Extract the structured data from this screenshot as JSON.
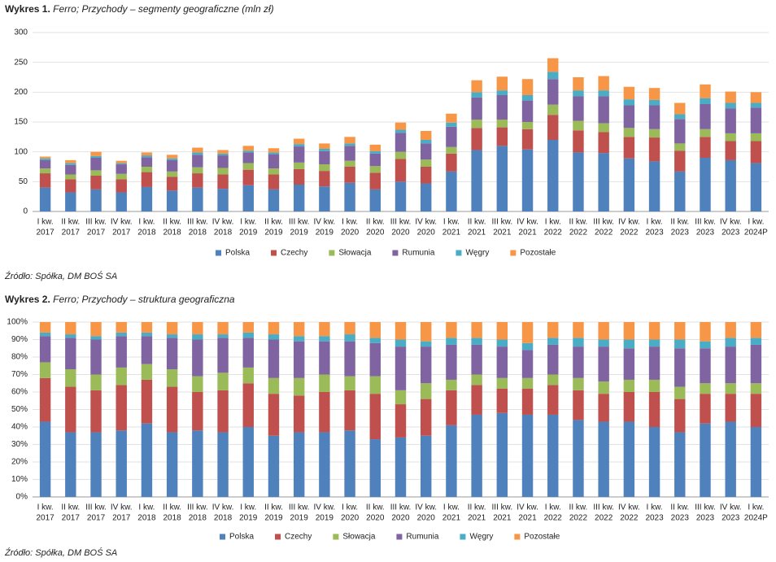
{
  "chart_data": [
    {
      "type": "stacked-bar",
      "label": "Wykres 1.",
      "title": "Ferro; Przychody – segmenty geograficzne (mln zł)",
      "categories": [
        [
          "I kw.",
          "2017"
        ],
        [
          "II kw.",
          "2017"
        ],
        [
          "III kw.",
          "2017"
        ],
        [
          "IV kw.",
          "2017"
        ],
        [
          "I kw.",
          "2018"
        ],
        [
          "II kw.",
          "2018"
        ],
        [
          "III kw.",
          "2018"
        ],
        [
          "IV kw.",
          "2018"
        ],
        [
          "I kw.",
          "2019"
        ],
        [
          "II kw.",
          "2019"
        ],
        [
          "III kw.",
          "2019"
        ],
        [
          "IV kw.",
          "2019"
        ],
        [
          "I kw.",
          "2020"
        ],
        [
          "II kw.",
          "2020"
        ],
        [
          "III kw.",
          "2020"
        ],
        [
          "IV kw.",
          "2020"
        ],
        [
          "I kw.",
          "2021"
        ],
        [
          "II kw.",
          "2021"
        ],
        [
          "III kw.",
          "2021"
        ],
        [
          "IV kw.",
          "2021"
        ],
        [
          "I kw.",
          "2022"
        ],
        [
          "II kw.",
          "2022"
        ],
        [
          "III kw.",
          "2022"
        ],
        [
          "IV kw.",
          "2022"
        ],
        [
          "I kw.",
          "2023"
        ],
        [
          "II kw.",
          "2023"
        ],
        [
          "III kw.",
          "2023"
        ],
        [
          "IV kw.",
          "2023"
        ],
        [
          "I kw.",
          "2024P"
        ]
      ],
      "series": [
        {
          "name": "Polska",
          "color": "#4f81bd",
          "values": [
            40,
            32,
            37,
            32,
            41,
            35,
            40,
            38,
            44,
            37,
            45,
            42,
            48,
            37,
            50,
            47,
            67,
            103,
            110,
            104,
            120,
            99,
            98,
            89,
            84,
            67,
            90,
            86,
            81
          ]
        },
        {
          "name": "Czechy",
          "color": "#c0504d",
          "values": [
            24,
            22,
            23,
            22,
            25,
            23,
            24,
            24,
            26,
            25,
            26,
            26,
            27,
            28,
            38,
            28,
            30,
            37,
            31,
            34,
            42,
            37,
            35,
            36,
            40,
            35,
            35,
            32,
            37
          ]
        },
        {
          "name": "Słowacja",
          "color": "#9bbb59",
          "values": [
            8,
            8,
            9,
            9,
            9,
            9,
            10,
            11,
            11,
            10,
            11,
            11,
            10,
            11,
            12,
            12,
            11,
            14,
            13,
            12,
            17,
            16,
            15,
            15,
            14,
            12,
            13,
            13,
            13
          ]
        },
        {
          "name": "Rumunia",
          "color": "#8064a2",
          "values": [
            14,
            16,
            21,
            16,
            16,
            19,
            21,
            21,
            18,
            24,
            27,
            22,
            25,
            21,
            32,
            27,
            34,
            37,
            41,
            36,
            43,
            41,
            45,
            38,
            40,
            41,
            42,
            42,
            43
          ]
        },
        {
          "name": "Węgry",
          "color": "#4bacc6",
          "values": [
            3,
            3,
            3,
            2,
            3,
            3,
            4,
            3,
            3,
            3,
            4,
            4,
            4,
            4,
            5,
            6,
            7,
            9,
            8,
            9,
            12,
            10,
            10,
            10,
            9,
            8,
            10,
            9,
            8
          ]
        },
        {
          "name": "Pozostałe",
          "color": "#f79646",
          "values": [
            3,
            5,
            7,
            4,
            5,
            6,
            8,
            6,
            8,
            7,
            9,
            9,
            11,
            11,
            12,
            15,
            15,
            20,
            23,
            27,
            23,
            22,
            24,
            21,
            20,
            19,
            23,
            19,
            18
          ]
        }
      ],
      "ylim": [
        0,
        300
      ],
      "yticks": [
        0,
        50,
        100,
        150,
        200,
        250,
        300
      ],
      "grid": true,
      "legend": "bottom",
      "source": "Źródło: Spółka, DM BOŚ SA"
    },
    {
      "type": "stacked-bar",
      "label": "Wykres 2.",
      "title": "Ferro; Przychody – struktura geograficzna",
      "categories": [
        [
          "I kw.",
          "2017"
        ],
        [
          "II kw.",
          "2017"
        ],
        [
          "III kw.",
          "2017"
        ],
        [
          "IV kw.",
          "2017"
        ],
        [
          "I kw.",
          "2018"
        ],
        [
          "II kw.",
          "2018"
        ],
        [
          "III kw.",
          "2018"
        ],
        [
          "IV kw.",
          "2018"
        ],
        [
          "I kw.",
          "2019"
        ],
        [
          "II kw.",
          "2019"
        ],
        [
          "III kw.",
          "2019"
        ],
        [
          "IV kw.",
          "2019"
        ],
        [
          "I kw.",
          "2020"
        ],
        [
          "II kw.",
          "2020"
        ],
        [
          "III kw.",
          "2020"
        ],
        [
          "IV kw.",
          "2020"
        ],
        [
          "I kw.",
          "2021"
        ],
        [
          "II kw.",
          "2021"
        ],
        [
          "III kw.",
          "2021"
        ],
        [
          "IV kw.",
          "2021"
        ],
        [
          "I kw.",
          "2022"
        ],
        [
          "II kw.",
          "2022"
        ],
        [
          "III kw.",
          "2022"
        ],
        [
          "IV kw.",
          "2022"
        ],
        [
          "I kw.",
          "2023"
        ],
        [
          "II kw.",
          "2023"
        ],
        [
          "III kw.",
          "2023"
        ],
        [
          "IV kw.",
          "2023"
        ],
        [
          "I kw.",
          "2024P"
        ]
      ],
      "series": [
        {
          "name": "Polska",
          "color": "#4f81bd",
          "values": [
            43,
            37,
            37,
            38,
            42,
            37,
            38,
            37,
            40,
            35,
            37,
            37,
            38,
            33,
            34,
            35,
            41,
            47,
            48,
            47,
            47,
            44,
            43,
            43,
            40,
            37,
            42,
            43,
            40
          ]
        },
        {
          "name": "Czechy",
          "color": "#c0504d",
          "values": [
            25,
            26,
            24,
            26,
            25,
            26,
            22,
            24,
            25,
            24,
            21,
            23,
            23,
            26,
            19,
            21,
            20,
            17,
            14,
            15,
            17,
            17,
            16,
            17,
            20,
            19,
            17,
            16,
            19
          ]
        },
        {
          "name": "Słowacja",
          "color": "#9bbb59",
          "values": [
            9,
            10,
            9,
            10,
            9,
            10,
            9,
            10,
            9,
            9,
            10,
            10,
            8,
            10,
            8,
            9,
            6,
            6,
            6,
            6,
            6,
            7,
            7,
            7,
            7,
            7,
            6,
            6,
            6
          ]
        },
        {
          "name": "Rumunia",
          "color": "#8064a2",
          "values": [
            15,
            18,
            20,
            18,
            16,
            18,
            21,
            20,
            17,
            22,
            21,
            19,
            20,
            19,
            25,
            21,
            20,
            17,
            18,
            16,
            17,
            18,
            20,
            18,
            19,
            22,
            20,
            21,
            22
          ]
        },
        {
          "name": "Węgry",
          "color": "#4bacc6",
          "values": [
            2,
            2,
            2,
            2,
            2,
            2,
            3,
            2,
            3,
            3,
            3,
            3,
            4,
            3,
            4,
            3,
            4,
            4,
            4,
            4,
            4,
            5,
            4,
            5,
            4,
            5,
            4,
            5,
            4
          ]
        },
        {
          "name": "Pozostałe",
          "color": "#f79646",
          "values": [
            6,
            7,
            8,
            6,
            6,
            7,
            7,
            7,
            6,
            7,
            8,
            8,
            7,
            9,
            10,
            11,
            9,
            9,
            10,
            12,
            9,
            9,
            10,
            10,
            10,
            10,
            11,
            9,
            9
          ]
        }
      ],
      "ylim": [
        0,
        100
      ],
      "yticks": [
        {
          "value": 0,
          "label": "0%"
        },
        {
          "value": 10,
          "label": "10%"
        },
        {
          "value": 20,
          "label": "20%"
        },
        {
          "value": 30,
          "label": "30%"
        },
        {
          "value": 40,
          "label": "40%"
        },
        {
          "value": 50,
          "label": "50%"
        },
        {
          "value": 60,
          "label": "60%"
        },
        {
          "value": 70,
          "label": "70%"
        },
        {
          "value": 80,
          "label": "80%"
        },
        {
          "value": 90,
          "label": "90%"
        },
        {
          "value": 100,
          "label": "100%"
        }
      ],
      "grid": true,
      "legend": "bottom",
      "source": "Źródło: Spółka, DM BOŚ SA"
    }
  ]
}
